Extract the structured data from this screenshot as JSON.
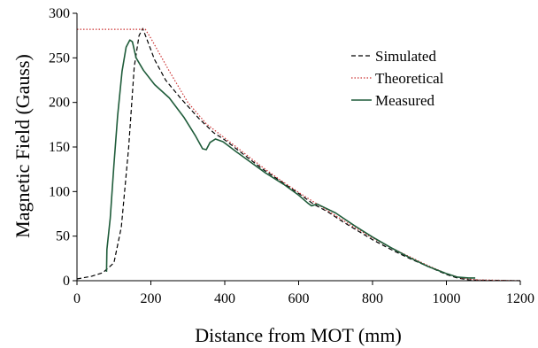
{
  "chart_data": {
    "type": "line",
    "title": "",
    "xlabel": "Distance from MOT (mm)",
    "ylabel": "Magnetic Field (Gauss)",
    "xlim": [
      0,
      1200
    ],
    "ylim": [
      0,
      300
    ],
    "xticks": [
      0,
      200,
      400,
      600,
      800,
      1000,
      1200
    ],
    "yticks": [
      0,
      50,
      100,
      150,
      200,
      250,
      300
    ],
    "grid": false,
    "legend_position": "top-right",
    "series": [
      {
        "name": "Simulated",
        "color": "#000000",
        "dash": "dashed",
        "points": [
          [
            0,
            2
          ],
          [
            40,
            5
          ],
          [
            70,
            9
          ],
          [
            100,
            20
          ],
          [
            120,
            60
          ],
          [
            140,
            150
          ],
          [
            155,
            240
          ],
          [
            168,
            275
          ],
          [
            178,
            283
          ],
          [
            190,
            270
          ],
          [
            210,
            248
          ],
          [
            240,
            225
          ],
          [
            280,
            205
          ],
          [
            330,
            182
          ],
          [
            370,
            166
          ],
          [
            400,
            158
          ],
          [
            450,
            142
          ],
          [
            500,
            126
          ],
          [
            550,
            112
          ],
          [
            600,
            98
          ],
          [
            640,
            86
          ],
          [
            680,
            77
          ],
          [
            720,
            66
          ],
          [
            760,
            56
          ],
          [
            800,
            46
          ],
          [
            850,
            35
          ],
          [
            900,
            25
          ],
          [
            950,
            16
          ],
          [
            1000,
            7
          ],
          [
            1030,
            3
          ],
          [
            1060,
            1
          ],
          [
            1100,
            0.5
          ],
          [
            1200,
            0
          ]
        ]
      },
      {
        "name": "Theoretical",
        "color": "#cc3333",
        "dash": "dotted",
        "points": [
          [
            0,
            282
          ],
          [
            185,
            282
          ],
          [
            200,
            272
          ],
          [
            250,
            235
          ],
          [
            300,
            200
          ],
          [
            350,
            176
          ],
          [
            400,
            160
          ],
          [
            450,
            144
          ],
          [
            500,
            128
          ],
          [
            550,
            113
          ],
          [
            600,
            99
          ],
          [
            650,
            86
          ],
          [
            700,
            73
          ],
          [
            750,
            60
          ],
          [
            800,
            48
          ],
          [
            850,
            37
          ],
          [
            900,
            27
          ],
          [
            950,
            17
          ],
          [
            1000,
            8
          ],
          [
            1040,
            3
          ],
          [
            1080,
            1
          ],
          [
            1200,
            0
          ]
        ]
      },
      {
        "name": "Measured",
        "color": "#1f5c3a",
        "dash": "solid",
        "points": [
          [
            80,
            10
          ],
          [
            81,
            35
          ],
          [
            90,
            70
          ],
          [
            100,
            130
          ],
          [
            110,
            185
          ],
          [
            122,
            235
          ],
          [
            133,
            262
          ],
          [
            143,
            270
          ],
          [
            150,
            268
          ],
          [
            160,
            250
          ],
          [
            180,
            236
          ],
          [
            210,
            220
          ],
          [
            250,
            205
          ],
          [
            290,
            183
          ],
          [
            320,
            163
          ],
          [
            340,
            148
          ],
          [
            350,
            147
          ],
          [
            360,
            155
          ],
          [
            375,
            159
          ],
          [
            395,
            156
          ],
          [
            430,
            145
          ],
          [
            470,
            133
          ],
          [
            510,
            121
          ],
          [
            560,
            108
          ],
          [
            600,
            96
          ],
          [
            625,
            87
          ],
          [
            635,
            84
          ],
          [
            650,
            86
          ],
          [
            670,
            82
          ],
          [
            700,
            76
          ],
          [
            750,
            62
          ],
          [
            800,
            49
          ],
          [
            850,
            37
          ],
          [
            900,
            26
          ],
          [
            950,
            16
          ],
          [
            1000,
            8
          ],
          [
            1030,
            4
          ],
          [
            1060,
            3
          ],
          [
            1078,
            3
          ]
        ]
      }
    ]
  }
}
